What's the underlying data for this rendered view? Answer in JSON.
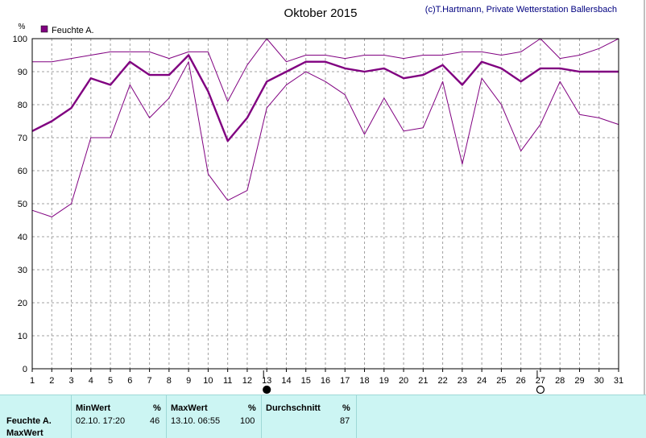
{
  "chart_data": {
    "type": "line",
    "title": "Oktober 2015",
    "copyright": "(c)T.Hartmann, Private Wetterstation Ballersbach",
    "ylabel": "%",
    "legend": [
      "Feuchte A."
    ],
    "legend_placement": "top-left",
    "grid": true,
    "ylim": [
      0,
      100
    ],
    "yticks": [
      0,
      10,
      20,
      30,
      40,
      50,
      60,
      70,
      80,
      90,
      100
    ],
    "x": [
      1,
      2,
      3,
      4,
      5,
      6,
      7,
      8,
      9,
      10,
      11,
      12,
      13,
      14,
      15,
      16,
      17,
      18,
      19,
      20,
      21,
      22,
      23,
      24,
      25,
      26,
      27,
      28,
      29,
      30,
      31
    ],
    "series": [
      {
        "name": "Feuchte A.",
        "role": "max",
        "values": [
          93,
          93,
          94,
          95,
          96,
          96,
          96,
          94,
          96,
          96,
          81,
          92,
          100,
          93,
          95,
          95,
          94,
          95,
          95,
          94,
          95,
          95,
          96,
          96,
          95,
          96,
          100,
          94,
          95,
          97,
          100
        ]
      },
      {
        "name": "Feuchte A.",
        "role": "average",
        "values": [
          72,
          75,
          79,
          88,
          86,
          93,
          89,
          89,
          95,
          84,
          69,
          76,
          87,
          90,
          93,
          93,
          91,
          90,
          91,
          88,
          89,
          92,
          86,
          93,
          91,
          87,
          91,
          91,
          90,
          90,
          90
        ]
      },
      {
        "name": "Feuchte A.",
        "role": "min",
        "values": [
          48,
          46,
          50,
          70,
          70,
          86,
          76,
          82,
          93,
          59,
          51,
          54,
          79,
          86,
          90,
          87,
          83,
          71,
          82,
          72,
          73,
          87,
          62,
          88,
          80,
          66,
          74,
          87,
          77,
          76,
          74
        ]
      }
    ],
    "colors": {
      "line": "#800080",
      "grid": "#a0a0a0",
      "title": "#000000",
      "copyright": "#000080"
    },
    "markers": [
      {
        "day": 13,
        "type": "new-moon"
      },
      {
        "day": 27,
        "type": "full-moon"
      }
    ]
  },
  "stats": {
    "row_label": "Feuchte A.",
    "row_label2": "MaxWert",
    "min_header": "MinWert",
    "min_unit": "%",
    "min_datetime": "02.10.  17:20",
    "min_value": "46",
    "max_header": "MaxWert",
    "max_unit": "%",
    "max_datetime": "13.10.  06:55",
    "max_value": "100",
    "avg_header": "Durchschnitt",
    "avg_unit": "%",
    "avg_value": "87"
  }
}
